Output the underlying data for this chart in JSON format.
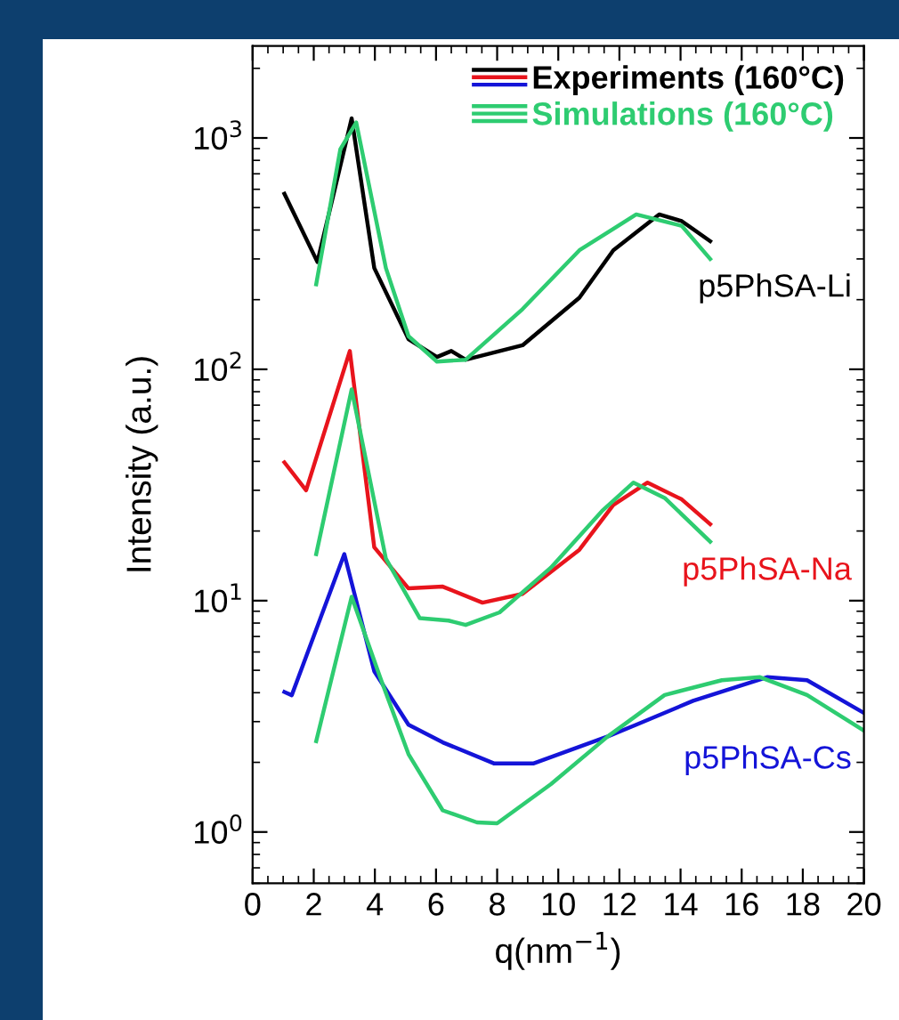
{
  "chart_data": {
    "type": "line",
    "xlabel": "q(nm$^{−1}$)",
    "ylabel": "Intensity (a.u.)",
    "log": "y",
    "xlim": [
      0,
      20
    ],
    "xticks": [
      0,
      2,
      4,
      6,
      8,
      10,
      12,
      14,
      16,
      18,
      20
    ],
    "ylim": [
      0.6,
      2500
    ],
    "yticks": [
      {
        "value": 1,
        "label": "10$^{0}$"
      },
      {
        "value": 10,
        "label": "10$^{1}$"
      },
      {
        "value": 100,
        "label": "10$^{2}$"
      },
      {
        "value": 1000,
        "label": "10$^{3}$"
      }
    ],
    "legend": "top right",
    "grid": false,
    "line_style": "solid",
    "marker": "none",
    "series": [
      {
        "name": "Experiments (160°C)",
        "color": "#000000",
        "x": [
          1.04,
          2.12,
          3.24,
          3.98,
          5.1,
          6.03,
          6.5,
          6.97,
          8.83,
          10.69,
          11.8,
          13.3,
          14.04,
          14.97
        ],
        "values": [
          574,
          291,
          1216,
          274,
          135,
          113,
          120,
          110,
          127,
          204,
          327,
          467,
          437,
          358
        ]
      },
      {
        "color": "#e8141c",
        "x": [
          1.04,
          1.75,
          3.18,
          3.98,
          5.1,
          6.22,
          7.52,
          8.83,
          10.69,
          11.8,
          12.92,
          14.04,
          14.97
        ],
        "values": [
          39.6,
          30,
          120,
          17,
          11.3,
          11.5,
          9.8,
          10.7,
          16.6,
          25.9,
          32.4,
          27.4,
          21.4
        ]
      },
      {
        "color": "#1414d8",
        "x": [
          1.04,
          1.28,
          3.0,
          3.98,
          5.1,
          6.22,
          7.89,
          9.2,
          11.62,
          12.55,
          14.41,
          16.83,
          18.14,
          20
        ],
        "values": [
          4.03,
          3.9,
          15.9,
          4.95,
          2.91,
          2.44,
          1.98,
          1.98,
          2.59,
          2.91,
          3.69,
          4.67,
          4.53,
          3.27
        ]
      },
      {
        "name": "Simulations (160°C)",
        "color": "#2ecc71",
        "x": [
          2.08,
          2.87,
          3.39,
          4.36,
          5.1,
          6.03,
          6.97,
          8.83,
          10.69,
          12.55,
          14.04,
          14.97
        ],
        "values": [
          233,
          895,
          1166,
          274,
          139,
          108,
          110,
          182,
          327,
          467,
          417,
          300
        ]
      },
      {
        "color": "#2ecc71",
        "x": [
          2.08,
          3.24,
          4.36,
          5.47,
          6.41,
          6.97,
          8.08,
          9.76,
          11.43,
          12.46,
          13.48,
          14.97
        ],
        "values": [
          15.9,
          81.9,
          15.2,
          8.4,
          8.2,
          7.85,
          8.9,
          13.9,
          24.4,
          32.4,
          27.8,
          18
        ]
      },
      {
        "color": "#2ecc71",
        "x": [
          2.08,
          3.24,
          4.17,
          5.1,
          6.22,
          7.34,
          8.0,
          9.76,
          11.62,
          13.48,
          15.35,
          16.6,
          18.14,
          20
        ],
        "values": [
          2.47,
          10.4,
          4.67,
          2.17,
          1.24,
          1.1,
          1.09,
          1.61,
          2.59,
          3.91,
          4.53,
          4.67,
          3.91,
          2.74
        ]
      }
    ],
    "annotations": [
      "p5PhSA-Li",
      "p5PhSA-Na",
      "p5PhSA-Cs"
    ]
  }
}
